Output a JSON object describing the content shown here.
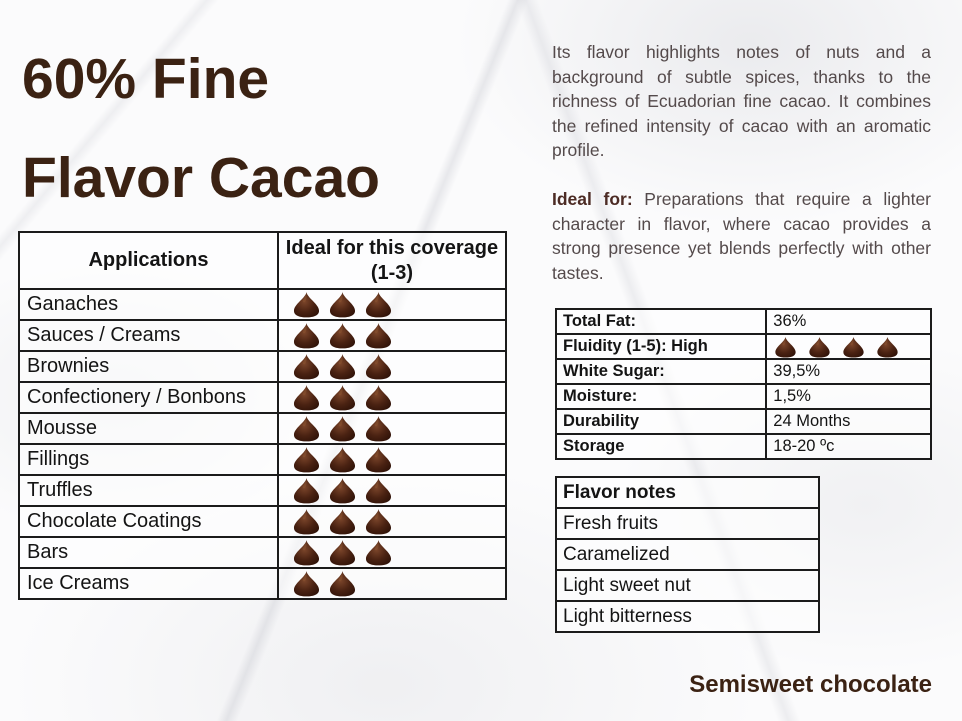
{
  "page": {
    "title_line1": "60% Fine",
    "title_line2": "Flavor Cacao",
    "footer": "Semisweet chocolate"
  },
  "intro": {
    "paragraph": "Its flavor highlights notes of nuts and a background of subtle spices, thanks to the richness of Ecuadorian fine cacao. It combines the refined intensity of cacao with an aromatic profile.",
    "ideal_for_label": "Ideal for:",
    "ideal_for_text": "Preparations that require a lighter character in flavor, where cacao provides a strong presence yet blends perfectly with other tastes."
  },
  "applications_table": {
    "col1_header": "Applications",
    "col2_header_line1": "Ideal for this coverage",
    "col2_header_line2": "(1-3)",
    "chip_scale_max": 3,
    "rows": [
      {
        "label": "Ganaches",
        "chips": 3
      },
      {
        "label": "Sauces / Creams",
        "chips": 3
      },
      {
        "label": "Brownies",
        "chips": 3
      },
      {
        "label": "Confectionery / Bonbons",
        "chips": 3
      },
      {
        "label": "Mousse",
        "chips": 3
      },
      {
        "label": "Fillings",
        "chips": 3
      },
      {
        "label": "Truffles",
        "chips": 3
      },
      {
        "label": "Chocolate Coatings",
        "chips": 3
      },
      {
        "label": "Bars",
        "chips": 3
      },
      {
        "label": "Ice Creams",
        "chips": 2
      }
    ]
  },
  "specs_table": {
    "rows": [
      {
        "label": "Total Fat:",
        "value": "36%"
      },
      {
        "label": "Fluidity (1-5): High",
        "chips": 4
      },
      {
        "label": "White Sugar:",
        "value": "39,5%"
      },
      {
        "label": "Moisture:",
        "value": "1,5%"
      },
      {
        "label": "Durability",
        "value": "24 Months"
      },
      {
        "label": "Storage",
        "value": "18-20 ºc"
      }
    ]
  },
  "flavor_notes": {
    "header": "Flavor notes",
    "items": [
      "Fresh fruits",
      "Caramelized",
      "Light sweet nut",
      "Light bitterness"
    ]
  },
  "icons": {
    "chip": "chocolate-chip-icon"
  },
  "colors": {
    "title_brown": "#3b2213",
    "body_text": "#544a4b",
    "ideal_for_accent": "#4c2b24",
    "table_border": "#1b1b1b",
    "chip_dark": "#2a0f06",
    "chip_mid": "#4a2212",
    "chip_highlight": "#7b452a",
    "background": "#fbfbfc"
  }
}
